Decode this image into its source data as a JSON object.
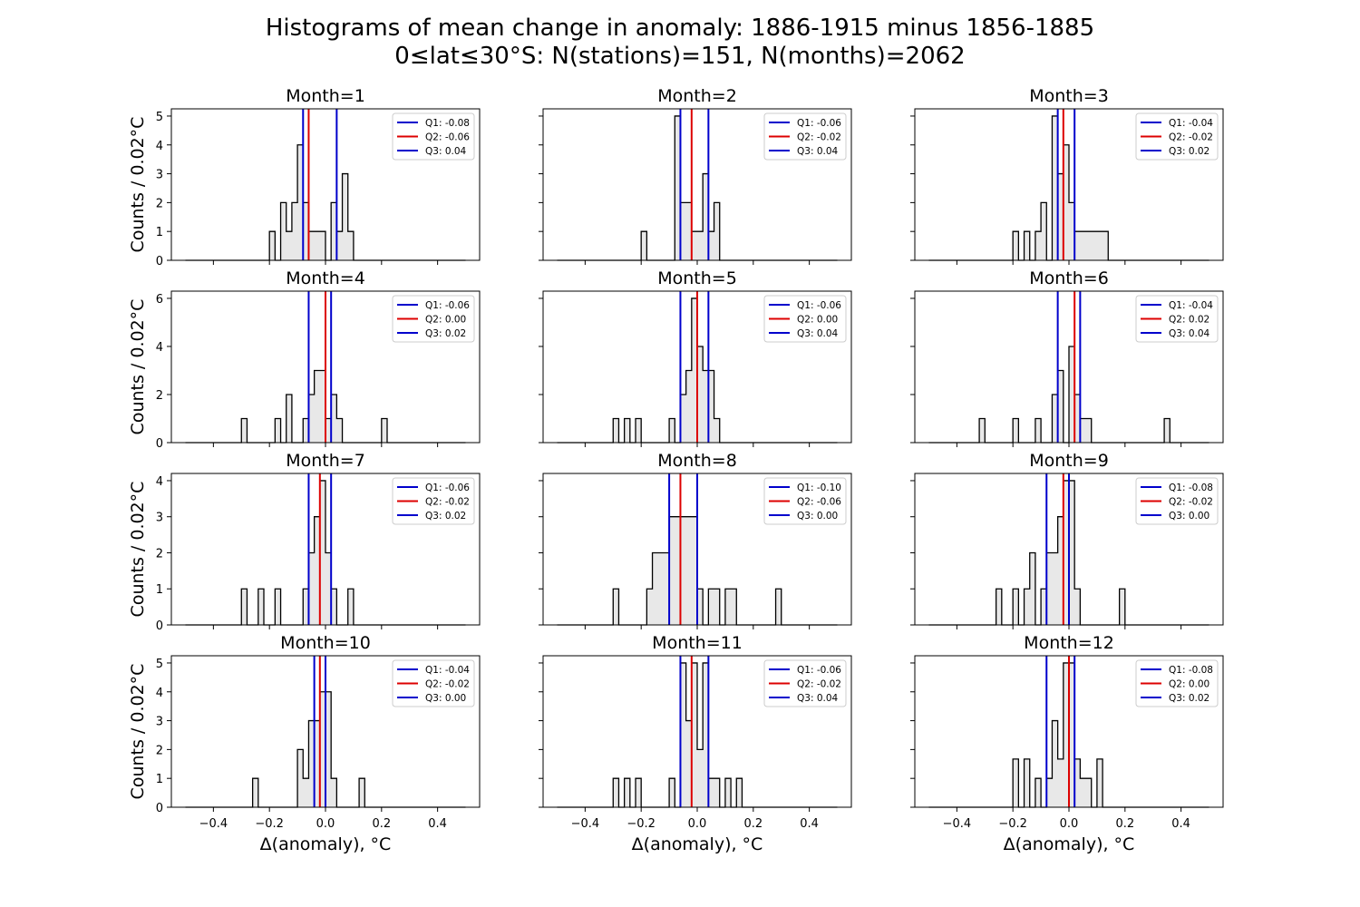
{
  "figure": {
    "title_line1": "Histograms of mean change in anomaly: 1886-1915 minus 1856-1885",
    "title_line2": "0≤lat≤30°S: N(stations)=151, N(months)=2062",
    "ylabel": "Counts / 0.02°C",
    "xlabel": "Δ(anomaly), °C"
  },
  "chart_data": {
    "type": "histogram-grid",
    "bin_width": 0.02,
    "xlim": [
      -0.55,
      0.55
    ],
    "xticks": [
      -0.4,
      -0.2,
      0.0,
      0.2,
      0.4
    ],
    "colors": {
      "Q1": "#0000cc",
      "Q2": "#dd0000",
      "Q3": "#0000cc",
      "fill": "#e8e8e8",
      "step": "#000000"
    },
    "panels": [
      {
        "title": "Month=1",
        "ylim": [
          0,
          5.25
        ],
        "yticks": [
          0,
          1,
          2,
          3,
          4,
          5
        ],
        "bins": [
          [
            -0.2,
            1
          ],
          [
            -0.18,
            0
          ],
          [
            -0.16,
            2
          ],
          [
            -0.14,
            1
          ],
          [
            -0.12,
            2
          ],
          [
            -0.1,
            4
          ],
          [
            -0.08,
            2
          ],
          [
            -0.06,
            1
          ],
          [
            -0.04,
            1
          ],
          [
            -0.02,
            1
          ],
          [
            0,
            0
          ],
          [
            0.02,
            2
          ],
          [
            0.04,
            1
          ],
          [
            0.06,
            3
          ],
          [
            0.08,
            1
          ]
        ],
        "q1": -0.08,
        "q2": -0.06,
        "q3": 0.04,
        "legend": [
          "Q1: -0.08",
          "Q2: -0.06",
          "Q3: 0.04"
        ]
      },
      {
        "title": "Month=2",
        "ylim": [
          0,
          5.25
        ],
        "yticks": [
          0,
          1,
          2,
          3,
          4,
          5
        ],
        "bins": [
          [
            -0.2,
            1
          ],
          [
            -0.08,
            5
          ],
          [
            -0.06,
            2
          ],
          [
            -0.04,
            2
          ],
          [
            -0.02,
            1
          ],
          [
            0,
            1
          ],
          [
            0.02,
            3
          ],
          [
            0.04,
            1
          ],
          [
            0.06,
            2
          ]
        ],
        "q1": -0.06,
        "q2": -0.02,
        "q3": 0.04,
        "legend": [
          "Q1: -0.06",
          "Q2: -0.02",
          "Q3: 0.04"
        ]
      },
      {
        "title": "Month=3",
        "ylim": [
          0,
          5.25
        ],
        "yticks": [
          0,
          1,
          2,
          3,
          4,
          5
        ],
        "bins": [
          [
            -0.2,
            1
          ],
          [
            -0.16,
            1
          ],
          [
            -0.12,
            1
          ],
          [
            -0.1,
            2
          ],
          [
            -0.06,
            5
          ],
          [
            -0.04,
            3
          ],
          [
            -0.02,
            4
          ],
          [
            0,
            2
          ],
          [
            0.02,
            1
          ],
          [
            0.04,
            1
          ],
          [
            0.06,
            1
          ],
          [
            0.08,
            1
          ],
          [
            0.1,
            1
          ],
          [
            0.12,
            1
          ]
        ],
        "q1": -0.04,
        "q2": -0.02,
        "q3": 0.02,
        "legend": [
          "Q1: -0.04",
          "Q2: -0.02",
          "Q3: 0.02"
        ]
      },
      {
        "title": "Month=4",
        "ylim": [
          0,
          6.3
        ],
        "yticks": [
          0,
          2,
          4,
          6
        ],
        "bins": [
          [
            -0.3,
            1
          ],
          [
            -0.18,
            1
          ],
          [
            -0.14,
            2
          ],
          [
            -0.08,
            1
          ],
          [
            -0.06,
            2
          ],
          [
            -0.04,
            3
          ],
          [
            -0.02,
            3
          ],
          [
            0,
            1
          ],
          [
            0.02,
            2
          ],
          [
            0.04,
            1
          ],
          [
            0.2,
            1
          ]
        ],
        "q1": -0.06,
        "q2": 0.0,
        "q3": 0.02,
        "legend": [
          "Q1: -0.06",
          "Q2: 0.00",
          "Q3: 0.02"
        ]
      },
      {
        "title": "Month=5",
        "ylim": [
          0,
          6.3
        ],
        "yticks": [
          0,
          2,
          4,
          6
        ],
        "bins": [
          [
            -0.3,
            1
          ],
          [
            -0.26,
            1
          ],
          [
            -0.24,
            0
          ],
          [
            -0.22,
            1
          ],
          [
            -0.18,
            0
          ],
          [
            -0.1,
            1
          ],
          [
            -0.06,
            2
          ],
          [
            -0.04,
            3
          ],
          [
            -0.02,
            6
          ],
          [
            0,
            4
          ],
          [
            0.02,
            3
          ],
          [
            0.04,
            3
          ],
          [
            0.06,
            1
          ]
        ],
        "q1": -0.06,
        "q2": 0.0,
        "q3": 0.04,
        "legend": [
          "Q1: -0.06",
          "Q2: 0.00",
          "Q3: 0.04"
        ]
      },
      {
        "title": "Month=6",
        "ylim": [
          0,
          6.3
        ],
        "yticks": [
          0,
          2,
          4,
          6
        ],
        "bins": [
          [
            -0.32,
            1
          ],
          [
            -0.2,
            1
          ],
          [
            -0.12,
            1
          ],
          [
            -0.06,
            2
          ],
          [
            -0.04,
            3
          ],
          [
            0,
            4
          ],
          [
            0.02,
            2
          ],
          [
            0.04,
            1
          ],
          [
            0.06,
            1
          ],
          [
            0.34,
            1
          ]
        ],
        "q1": -0.04,
        "q2": 0.02,
        "q3": 0.04,
        "legend": [
          "Q1: -0.04",
          "Q2: 0.02",
          "Q3: 0.04"
        ]
      },
      {
        "title": "Month=7",
        "ylim": [
          0,
          4.2
        ],
        "yticks": [
          0,
          1,
          2,
          3,
          4
        ],
        "bins": [
          [
            -0.3,
            1
          ],
          [
            -0.24,
            1
          ],
          [
            -0.18,
            1
          ],
          [
            -0.08,
            1
          ],
          [
            -0.06,
            2
          ],
          [
            -0.04,
            3
          ],
          [
            -0.02,
            4
          ],
          [
            0,
            2
          ],
          [
            0.02,
            1
          ],
          [
            0.04,
            0
          ],
          [
            0.06,
            0
          ],
          [
            0.08,
            1
          ]
        ],
        "q1": -0.06,
        "q2": -0.02,
        "q3": 0.02,
        "legend": [
          "Q1: -0.06",
          "Q2: -0.02",
          "Q3: 0.02"
        ]
      },
      {
        "title": "Month=8",
        "ylim": [
          0,
          4.2
        ],
        "yticks": [
          0,
          1,
          2,
          3,
          4
        ],
        "bins": [
          [
            -0.3,
            1
          ],
          [
            -0.18,
            1
          ],
          [
            -0.16,
            2
          ],
          [
            -0.14,
            2
          ],
          [
            -0.12,
            2
          ],
          [
            -0.1,
            3
          ],
          [
            -0.08,
            3
          ],
          [
            -0.06,
            3
          ],
          [
            -0.04,
            3
          ],
          [
            -0.02,
            3
          ],
          [
            0,
            1
          ],
          [
            0.04,
            1
          ],
          [
            0.06,
            1
          ],
          [
            0.1,
            1
          ],
          [
            0.12,
            1
          ],
          [
            0.14,
            0
          ],
          [
            0.16,
            0
          ],
          [
            0.18,
            0
          ],
          [
            0.2,
            0
          ],
          [
            0.22,
            0
          ],
          [
            0.24,
            0
          ],
          [
            0.26,
            0
          ],
          [
            0.28,
            1
          ]
        ],
        "q1": -0.1,
        "q2": -0.06,
        "q3": 0.0,
        "legend": [
          "Q1: -0.10",
          "Q2: -0.06",
          "Q3: 0.00"
        ]
      },
      {
        "title": "Month=9",
        "ylim": [
          0,
          4.2
        ],
        "yticks": [
          0,
          1,
          2,
          3,
          4
        ],
        "bins": [
          [
            -0.26,
            1
          ],
          [
            -0.2,
            1
          ],
          [
            -0.16,
            1
          ],
          [
            -0.14,
            2
          ],
          [
            -0.1,
            1
          ],
          [
            -0.08,
            2
          ],
          [
            -0.06,
            2
          ],
          [
            -0.04,
            3
          ],
          [
            -0.02,
            4
          ],
          [
            0,
            4
          ],
          [
            0.02,
            1
          ],
          [
            0.18,
            1
          ]
        ],
        "q1": -0.08,
        "q2": -0.02,
        "q3": 0.0,
        "legend": [
          "Q1: -0.08",
          "Q2: -0.02",
          "Q3: 0.00"
        ]
      },
      {
        "title": "Month=10",
        "ylim": [
          0,
          5.25
        ],
        "yticks": [
          0,
          1,
          2,
          3,
          4,
          5
        ],
        "bins": [
          [
            -0.26,
            1
          ],
          [
            -0.1,
            2
          ],
          [
            -0.08,
            1
          ],
          [
            -0.06,
            3
          ],
          [
            -0.04,
            3
          ],
          [
            -0.02,
            4
          ],
          [
            0,
            4
          ],
          [
            0.02,
            1
          ],
          [
            0.12,
            1
          ]
        ],
        "q1": -0.04,
        "q2": -0.02,
        "q3": 0.0,
        "legend": [
          "Q1: -0.04",
          "Q2: -0.02",
          "Q3: 0.00"
        ]
      },
      {
        "title": "Month=11",
        "ylim": [
          0,
          5.25
        ],
        "yticks": [
          0,
          1,
          2,
          3,
          4,
          5
        ],
        "bins": [
          [
            -0.3,
            1
          ],
          [
            -0.26,
            1
          ],
          [
            -0.22,
            1
          ],
          [
            -0.1,
            1
          ],
          [
            -0.06,
            5
          ],
          [
            -0.04,
            3
          ],
          [
            -0.02,
            5
          ],
          [
            0,
            2
          ],
          [
            0.02,
            5
          ],
          [
            0.04,
            1
          ],
          [
            0.06,
            1
          ],
          [
            0.1,
            1
          ],
          [
            0.14,
            1
          ]
        ],
        "q1": -0.06,
        "q2": -0.02,
        "q3": 0.04,
        "legend": [
          "Q1: -0.06",
          "Q2: -0.02",
          "Q3: 0.04"
        ]
      },
      {
        "title": "Month=12",
        "ylim": [
          0,
          5.25
        ],
        "yticks": [
          0,
          1,
          2,
          3,
          4,
          5
        ],
        "bins": [
          [
            -0.2,
            1.67
          ],
          [
            -0.16,
            1.67
          ],
          [
            -0.12,
            1
          ],
          [
            -0.08,
            1
          ],
          [
            -0.06,
            3
          ],
          [
            -0.04,
            1.67
          ],
          [
            -0.02,
            5
          ],
          [
            0,
            5
          ],
          [
            0.02,
            1.67
          ],
          [
            0.04,
            1
          ],
          [
            0.06,
            1
          ],
          [
            0.1,
            1.67
          ]
        ],
        "q1": -0.08,
        "q2": 0.0,
        "q3": 0.02,
        "legend": [
          "Q1: -0.08",
          "Q2: 0.00",
          "Q3: 0.02"
        ]
      }
    ]
  }
}
